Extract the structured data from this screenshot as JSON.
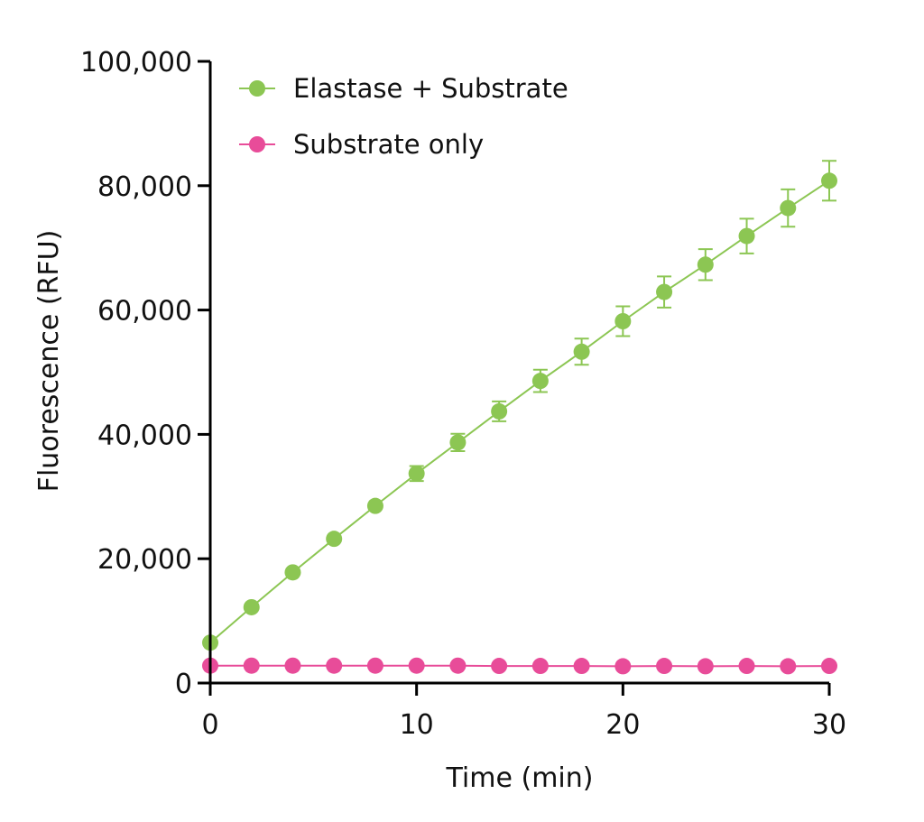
{
  "chart_data": {
    "type": "line",
    "title": "",
    "xlabel": "Time (min)",
    "ylabel": "Fluorescence (RFU)",
    "xlim": [
      0,
      30
    ],
    "ylim": [
      0,
      100000
    ],
    "x_ticks": [
      0,
      10,
      20,
      30
    ],
    "x_tick_labels": [
      "0",
      "10",
      "20",
      "30"
    ],
    "y_ticks": [
      0,
      20000,
      40000,
      60000,
      80000,
      100000
    ],
    "y_tick_labels": [
      "0",
      "20,000",
      "40,000",
      "60,000",
      "80,000",
      "100,000"
    ],
    "grid": false,
    "legend_position": "top-left",
    "x": [
      0,
      2,
      4,
      6,
      8,
      10,
      12,
      14,
      16,
      18,
      20,
      22,
      24,
      26,
      28,
      30
    ],
    "series": [
      {
        "name": "Elastase + Substrate",
        "color": "#8cc653",
        "values": [
          6500,
          12200,
          17800,
          23200,
          28500,
          33700,
          38700,
          43700,
          48600,
          53300,
          58200,
          62900,
          67300,
          71900,
          76400,
          80800
        ],
        "error": [
          0,
          0,
          0,
          0,
          0,
          1200,
          1400,
          1600,
          1800,
          2100,
          2400,
          2500,
          2500,
          2800,
          3000,
          3200
        ]
      },
      {
        "name": "Substrate only",
        "color": "#e84c99",
        "values": [
          2800,
          2800,
          2800,
          2800,
          2800,
          2800,
          2800,
          2750,
          2750,
          2750,
          2700,
          2750,
          2700,
          2750,
          2700,
          2750
        ],
        "error": [
          0,
          0,
          0,
          0,
          0,
          0,
          0,
          0,
          0,
          0,
          0,
          0,
          0,
          0,
          0,
          0
        ]
      }
    ]
  }
}
